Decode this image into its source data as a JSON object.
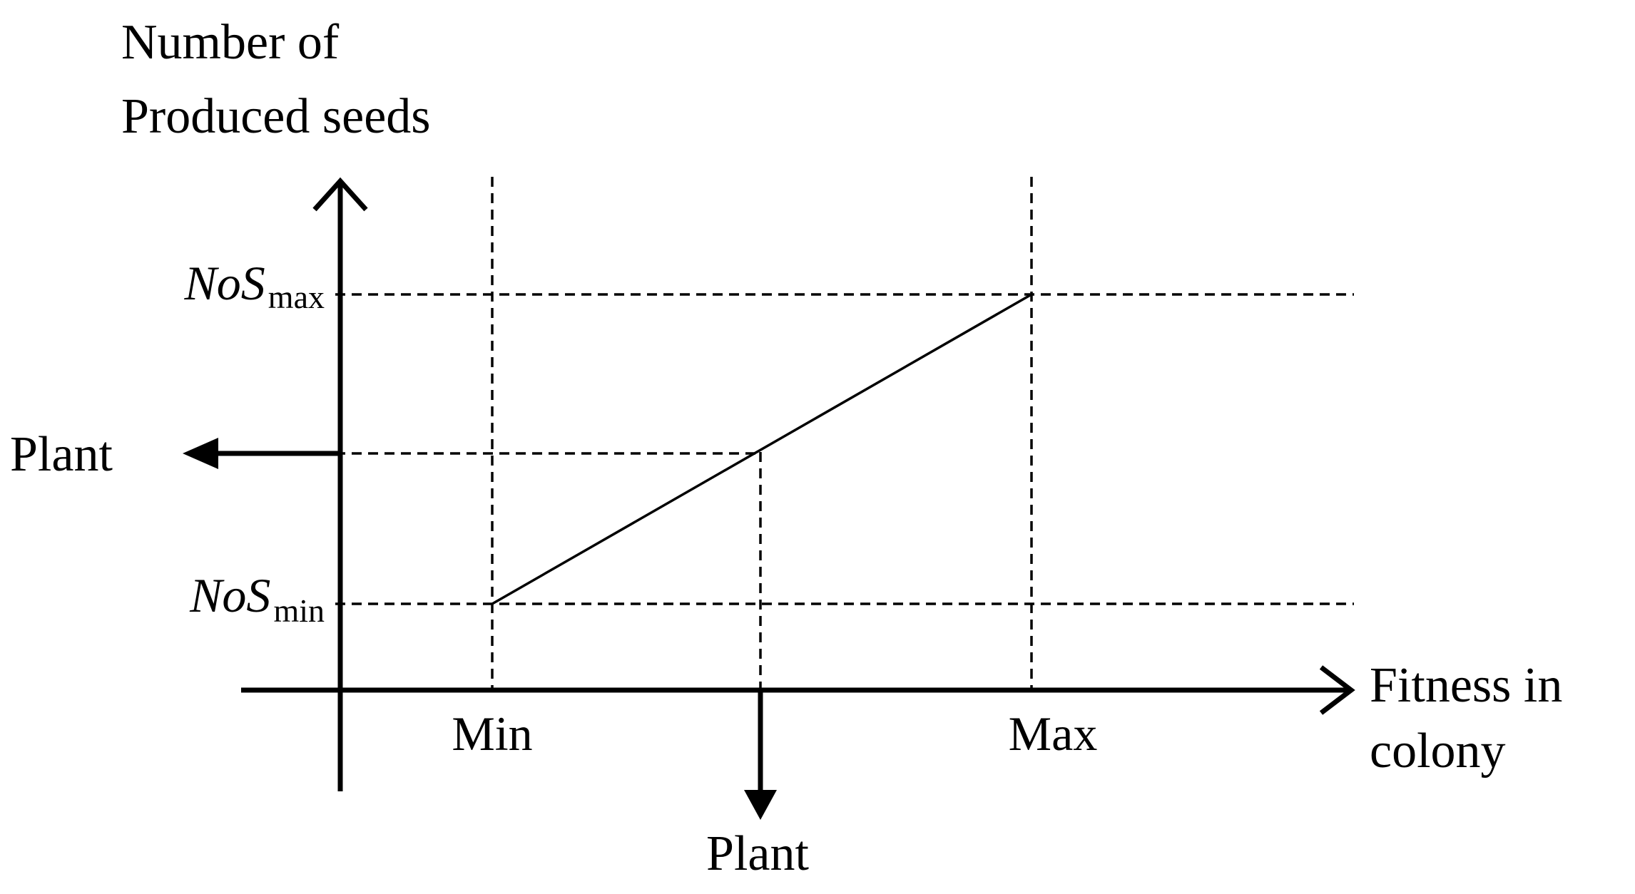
{
  "diagram": {
    "y_axis_label": [
      "Number of",
      "Produced seeds"
    ],
    "x_axis_label": [
      "Fitness in",
      "colony"
    ],
    "x_ticks": {
      "min": "Min",
      "max": "Max"
    },
    "y_ticks": {
      "max": {
        "main": "NoS",
        "sub": "max"
      },
      "min": {
        "main": "NoS",
        "sub": "min"
      }
    },
    "plant_left": "Plant",
    "plant_bottom": "Plant"
  }
}
